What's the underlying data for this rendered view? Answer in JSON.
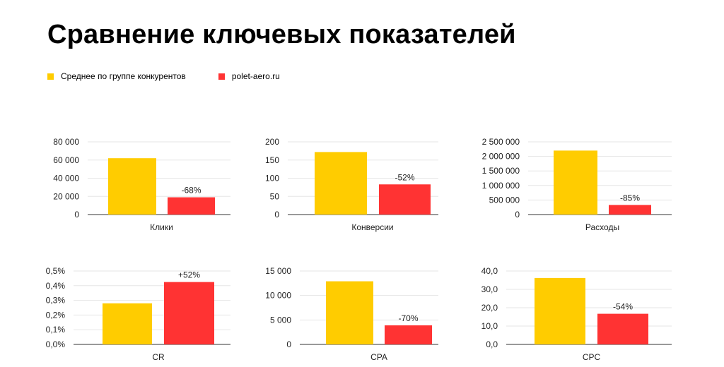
{
  "title": "Сравнение ключевых показателей",
  "legend": [
    {
      "label": "Среднее по группе конкурентов",
      "color": "#FFCC00"
    },
    {
      "label": "polet-aero.ru",
      "color": "#FF3333"
    }
  ],
  "chart_data": [
    {
      "type": "bar",
      "xlabel": "Клики",
      "categories": [
        "Клики"
      ],
      "series": [
        {
          "name": "Среднее по группе конкурентов",
          "values": [
            62000
          ]
        },
        {
          "name": "polet-aero.ru",
          "values": [
            19000
          ]
        }
      ],
      "ylim": [
        0,
        80000
      ],
      "yticks": [
        "0",
        "20 000",
        "40 000",
        "60 000",
        "80 000"
      ],
      "annotation": "-68%"
    },
    {
      "type": "bar",
      "xlabel": "Конверсии",
      "categories": [
        "Конверсии"
      ],
      "series": [
        {
          "name": "Среднее по группе конкурентов",
          "values": [
            172
          ]
        },
        {
          "name": "polet-aero.ru",
          "values": [
            83
          ]
        }
      ],
      "ylim": [
        0,
        200
      ],
      "yticks": [
        "0",
        "50",
        "100",
        "150",
        "200"
      ],
      "annotation": "-52%"
    },
    {
      "type": "bar",
      "xlabel": "Расходы",
      "categories": [
        "Расходы"
      ],
      "series": [
        {
          "name": "Среднее по группе конкурентов",
          "values": [
            2200000
          ]
        },
        {
          "name": "polet-aero.ru",
          "values": [
            330000
          ]
        }
      ],
      "ylim": [
        0,
        2500000
      ],
      "yticks": [
        "0",
        "500 000",
        "1 000 000",
        "1 500 000",
        "2 000 000",
        "2 500 000"
      ],
      "annotation": "-85%"
    },
    {
      "type": "bar",
      "xlabel": "CR",
      "categories": [
        "CR"
      ],
      "series": [
        {
          "name": "Среднее по группе конкурентов",
          "values": [
            0.28
          ]
        },
        {
          "name": "polet-aero.ru",
          "values": [
            0.425
          ]
        }
      ],
      "ylim": [
        0,
        0.5
      ],
      "yticks": [
        "0,0%",
        "0,1%",
        "0,2%",
        "0,3%",
        "0,4%",
        "0,5%"
      ],
      "annotation": "+52%"
    },
    {
      "type": "bar",
      "xlabel": "CPA",
      "categories": [
        "CPA"
      ],
      "series": [
        {
          "name": "Среднее по группе конкурентов",
          "values": [
            12900
          ]
        },
        {
          "name": "polet-aero.ru",
          "values": [
            3900
          ]
        }
      ],
      "ylim": [
        0,
        15000
      ],
      "yticks": [
        "0",
        "5 000",
        "10 000",
        "15 000"
      ],
      "annotation": "-70%"
    },
    {
      "type": "bar",
      "xlabel": "CPC",
      "categories": [
        "CPC"
      ],
      "series": [
        {
          "name": "Среднее по группе конкурентов",
          "values": [
            36.2
          ]
        },
        {
          "name": "polet-aero.ru",
          "values": [
            16.7
          ]
        }
      ],
      "ylim": [
        0,
        40
      ],
      "yticks": [
        "0,0",
        "10,0",
        "20,0",
        "30,0",
        "40,0"
      ],
      "annotation": "-54%"
    }
  ]
}
